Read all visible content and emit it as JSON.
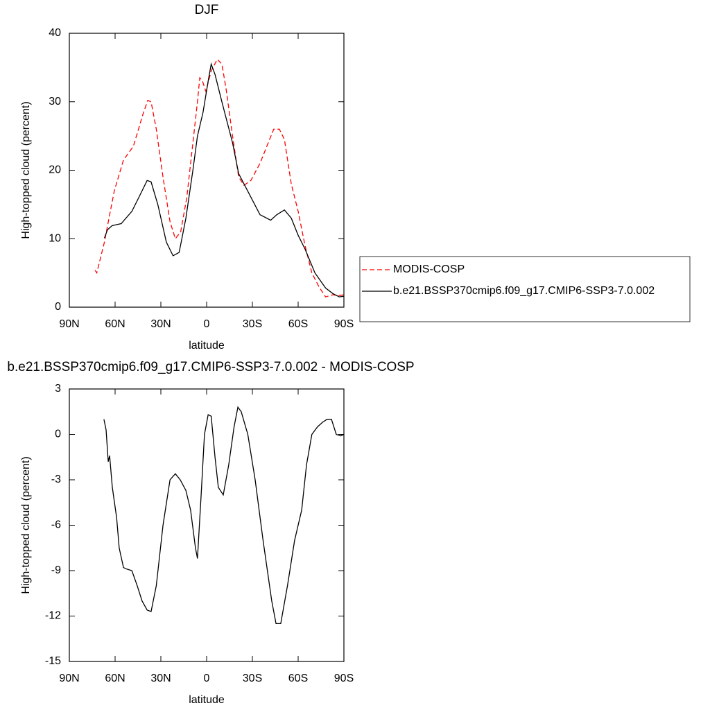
{
  "chart_data": [
    {
      "type": "line",
      "title": "DJF",
      "xlabel": "latitude",
      "ylabel": "High-topped cloud (percent)",
      "xlim": [
        90,
        -90
      ],
      "xticks": [
        {
          "value": 90,
          "label": "90N"
        },
        {
          "value": 60,
          "label": "60N"
        },
        {
          "value": 30,
          "label": "30N"
        },
        0,
        {
          "value": -30,
          "label": "30S"
        },
        {
          "value": -60,
          "label": "60S"
        },
        {
          "value": -90,
          "label": "90S"
        }
      ],
      "ylim": [
        0,
        40
      ],
      "yticks": [
        0,
        10,
        20,
        30,
        40
      ],
      "legend": "right",
      "series": [
        {
          "name": "MODIS-COSP",
          "color": "#ff0000",
          "linestyle": "dashed",
          "x": [
            73.2,
            72,
            67,
            64,
            60.5,
            54.5,
            48,
            42,
            38.6,
            36.4,
            33,
            28.6,
            24,
            20.5,
            17,
            13,
            9,
            6,
            4.5,
            2.7,
            0.5,
            -3,
            -7,
            -10,
            -12.7,
            -17,
            -21,
            -24.5,
            -29,
            -35,
            -39.5,
            -44,
            -47.7,
            -51,
            -55.5,
            -60,
            -64.5,
            -69,
            -73.6,
            -78,
            -82.7,
            -87,
            -90
          ],
          "values": [
            5.4,
            5.0,
            9.5,
            13,
            17,
            21.5,
            23.5,
            28,
            30.2,
            30,
            26,
            19,
            12.5,
            10,
            11,
            16,
            24,
            30,
            33.5,
            33,
            31.5,
            34.5,
            36.2,
            35.5,
            32,
            25,
            19,
            17.8,
            18.5,
            21,
            23.5,
            26,
            26,
            24.5,
            18,
            14,
            9,
            5,
            3,
            1.5,
            1.8,
            1.7,
            1.8
          ]
        },
        {
          "name": "b.e21.BSSP370cmip6.f09_g17.CMIP6-SSP3-7.0.002",
          "color": "#000000",
          "linestyle": "solid",
          "x": [
            67,
            65,
            62,
            56,
            49,
            44.5,
            39,
            36.4,
            32,
            26.4,
            22,
            18,
            13.6,
            9,
            6,
            2.3,
            -1,
            -3,
            -5.5,
            -10,
            -17,
            -21,
            -28,
            -35,
            -42,
            -46,
            -51,
            -55.5,
            -60,
            -64.5,
            -71,
            -78,
            -82.7,
            -87,
            -90
          ],
          "values": [
            10.1,
            11.3,
            11.9,
            12.2,
            14,
            16,
            18.5,
            18.3,
            15,
            9.5,
            7.5,
            8,
            13,
            20,
            25,
            28.5,
            33,
            35.5,
            34,
            30,
            24,
            19.5,
            16.5,
            13.5,
            12.7,
            13.5,
            14.2,
            13,
            10.5,
            8.5,
            5,
            2.8,
            2,
            1.5,
            1.6
          ]
        }
      ]
    },
    {
      "type": "line",
      "title": "b.e21.BSSP370cmip6.f09_g17.CMIP6-SSP3-7.0.002 - MODIS-COSP",
      "xlabel": "latitude",
      "ylabel": "High-topped cloud (percent)",
      "xlim": [
        90,
        -90
      ],
      "xticks": [
        {
          "value": 90,
          "label": "90N"
        },
        {
          "value": 60,
          "label": "60N"
        },
        {
          "value": 30,
          "label": "30N"
        },
        0,
        {
          "value": -30,
          "label": "30S"
        },
        {
          "value": -60,
          "label": "60S"
        },
        {
          "value": -90,
          "label": "90S"
        }
      ],
      "ylim": [
        -15,
        3
      ],
      "yticks": [
        3,
        0,
        -3,
        -6,
        -9,
        -12,
        -15
      ],
      "color": "#000000",
      "x": [
        67.3,
        65.9,
        64.5,
        63.6,
        61.8,
        59,
        57.3,
        54.5,
        52.3,
        49,
        45.5,
        42.3,
        39,
        36.4,
        33,
        28.6,
        24,
        20.5,
        17.3,
        13.6,
        10.5,
        7.3,
        6,
        3.6,
        1.4,
        -1,
        -3,
        -5.5,
        -7.7,
        -10.9,
        -14.5,
        -18,
        -20.5,
        -22.7,
        -27,
        -31.8,
        -37,
        -42.7,
        -45.5,
        -48.6,
        -53,
        -57.7,
        -62.3,
        -65.5,
        -69,
        -72.7,
        -76,
        -79,
        -81.8,
        -85,
        -88,
        -90
      ],
      "values": [
        1.0,
        0.3,
        -1.8,
        -1.4,
        -3.5,
        -5.5,
        -7.5,
        -8.8,
        -8.9,
        -9.0,
        -10,
        -11,
        -11.6,
        -11.7,
        -10,
        -6,
        -3,
        -2.6,
        -3,
        -3.7,
        -5,
        -7.5,
        -8.2,
        -4,
        0,
        1.3,
        1.2,
        -1.5,
        -3.5,
        -4,
        -2,
        0.5,
        1.8,
        1.5,
        0,
        -3,
        -7,
        -11,
        -12.5,
        -12.5,
        -10,
        -7,
        -5,
        -2,
        0,
        0.5,
        0.8,
        1.0,
        1.0,
        0,
        -0.1,
        0
      ]
    }
  ]
}
